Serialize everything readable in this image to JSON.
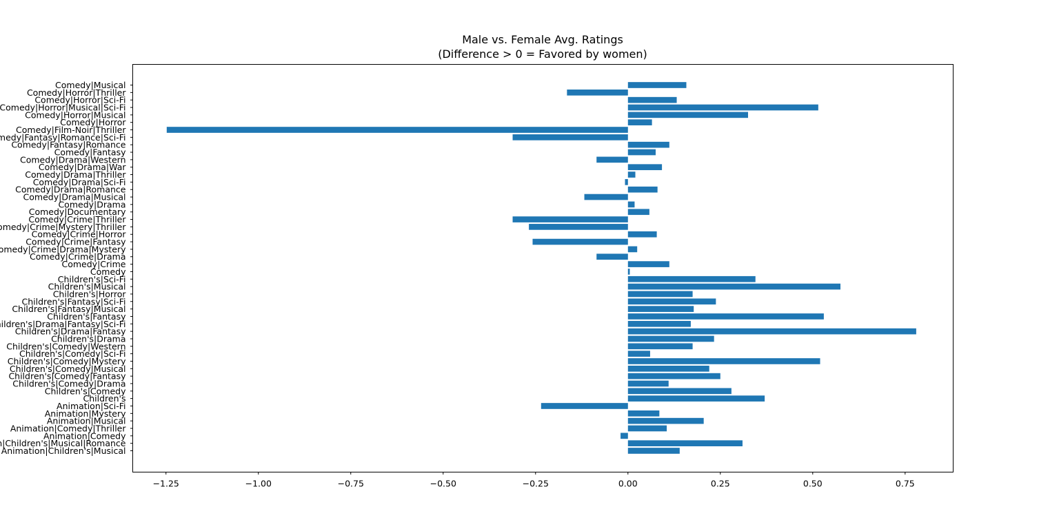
{
  "chart_data": {
    "type": "bar",
    "orientation": "horizontal",
    "title": [
      "Male vs. Female Avg. Ratings",
      "(Difference > 0 = Favored by women)"
    ],
    "xlabel": "",
    "ylabel": "",
    "xlim": [
      -1.34,
      0.88
    ],
    "xticks": [
      -1.25,
      -1.0,
      -0.75,
      -0.5,
      -0.25,
      0.0,
      0.25,
      0.5,
      0.75
    ],
    "xtick_labels": [
      "−1.25",
      "−1.00",
      "−0.75",
      "−0.50",
      "−0.25",
      "0.00",
      "0.25",
      "0.50",
      "0.75"
    ],
    "bar_color": "#1f77b4",
    "grid": false,
    "categories": [
      "Animation|Children's|Musical",
      "Animation|Children's|Musical|Romance",
      "Animation|Comedy",
      "Animation|Comedy|Thriller",
      "Animation|Musical",
      "Animation|Mystery",
      "Animation|Sci-Fi",
      "Children's",
      "Children's|Comedy",
      "Children's|Comedy|Drama",
      "Children's|Comedy|Fantasy",
      "Children's|Comedy|Musical",
      "Children's|Comedy|Mystery",
      "Children's|Comedy|Sci-Fi",
      "Children's|Comedy|Western",
      "Children's|Drama",
      "Children's|Drama|Fantasy",
      "Children's|Drama|Fantasy|Sci-Fi",
      "Children's|Fantasy",
      "Children's|Fantasy|Musical",
      "Children's|Fantasy|Sci-Fi",
      "Children's|Horror",
      "Children's|Musical",
      "Children's|Sci-Fi",
      "Comedy",
      "Comedy|Crime",
      "Comedy|Crime|Drama",
      "Comedy|Crime|Drama|Mystery",
      "Comedy|Crime|Fantasy",
      "Comedy|Crime|Horror",
      "Comedy|Crime|Mystery|Thriller",
      "Comedy|Crime|Thriller",
      "Comedy|Documentary",
      "Comedy|Drama",
      "Comedy|Drama|Musical",
      "Comedy|Drama|Romance",
      "Comedy|Drama|Sci-Fi",
      "Comedy|Drama|Thriller",
      "Comedy|Drama|War",
      "Comedy|Drama|Western",
      "Comedy|Fantasy",
      "Comedy|Fantasy|Romance",
      "Comedy|Fantasy|Romance|Sci-Fi",
      "Comedy|Film-Noir|Thriller",
      "Comedy|Horror",
      "Comedy|Horror|Musical",
      "Comedy|Horror|Musical|Sci-Fi",
      "Comedy|Horror|Sci-Fi",
      "Comedy|Horror|Thriller",
      "Comedy|Musical"
    ],
    "values": [
      0.14,
      0.31,
      -0.02,
      0.105,
      0.205,
      0.085,
      -0.235,
      0.37,
      0.28,
      0.11,
      0.25,
      0.22,
      0.52,
      0.06,
      0.175,
      0.233,
      0.78,
      0.17,
      0.53,
      0.178,
      0.238,
      0.175,
      0.575,
      0.345,
      0.005,
      0.112,
      -0.085,
      0.025,
      -0.258,
      0.078,
      -0.268,
      -0.312,
      0.058,
      0.018,
      -0.118,
      0.08,
      -0.008,
      0.02,
      0.092,
      -0.085,
      0.075,
      0.112,
      -0.312,
      -1.248,
      0.065,
      0.325,
      0.515,
      0.132,
      -0.165,
      0.158
    ]
  }
}
